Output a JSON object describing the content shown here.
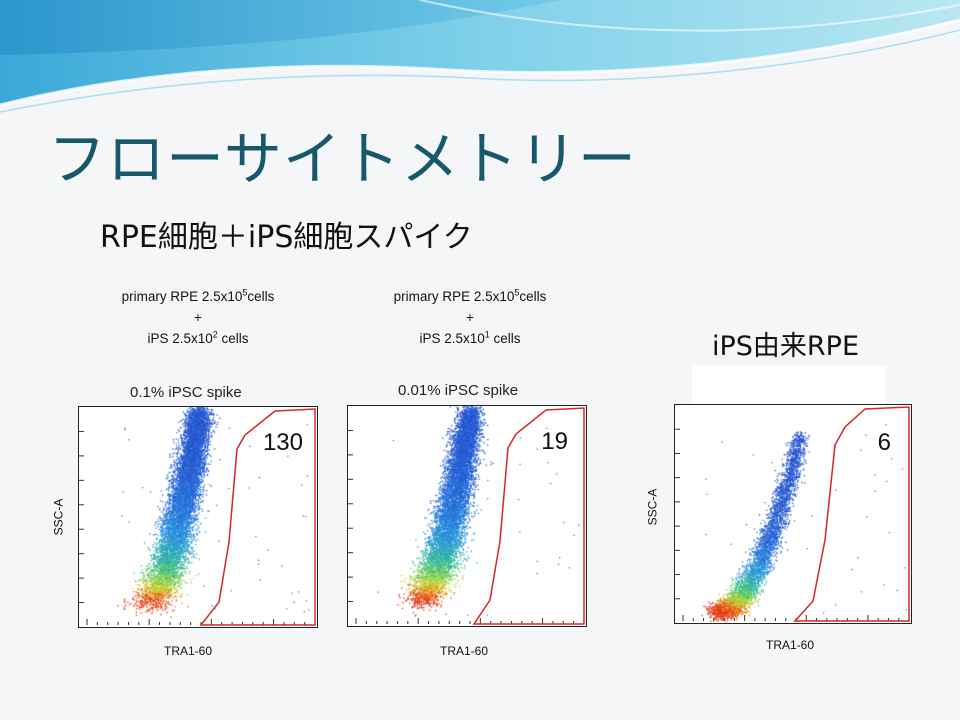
{
  "slide": {
    "title": "フローサイトメトリー",
    "subtitle": "RPE細胞＋iPS細胞スパイク",
    "colors": {
      "title": "#17596b",
      "gate": "#d9252a",
      "wave": "#5fc3e4"
    }
  },
  "panels": [
    {
      "condition_line1_pre": "primary RPE 2.5x10",
      "condition_line1_sup": "5",
      "condition_line1_post": "cells",
      "plus": "+",
      "condition_line3_pre": "iPS 2.5x10",
      "condition_line3_sup": "2",
      "condition_line3_post": " cells",
      "plot_title": "0.1% iPSC spike",
      "count": "130",
      "xlabel": "TRA1-60",
      "ylabel": "SSC-A"
    },
    {
      "condition_line1_pre": "primary RPE 2.5x10",
      "condition_line1_sup": "5",
      "condition_line1_post": "cells",
      "plus": "+",
      "condition_line3_pre": "iPS 2.5x10",
      "condition_line3_sup": "1",
      "condition_line3_post": " cells",
      "plot_title": "0.01% iPSC spike",
      "count": "19",
      "xlabel": "TRA1-60",
      "ylabel": ""
    },
    {
      "label": "iPS由来RPE",
      "count": "6",
      "xlabel": "TRA1-60",
      "ylabel": "SSC-A"
    }
  ]
}
